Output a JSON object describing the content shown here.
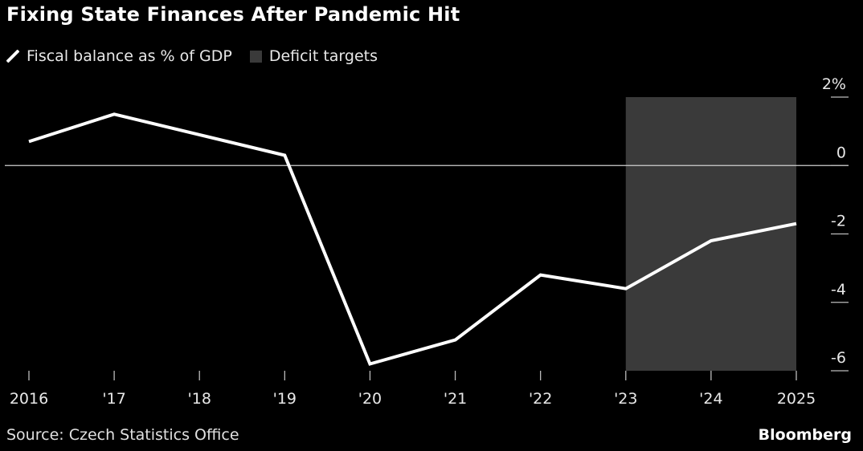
{
  "title": "Fixing State Finances After Pandemic Hit",
  "legend": {
    "line_label": "Fiscal balance as % of GDP",
    "box_label": "Deficit targets"
  },
  "source": "Source: Czech Statistics Office",
  "brand": "Bloomberg",
  "colors": {
    "background": "#000000",
    "line": "#ffffff",
    "target_band": "#3a3a3a",
    "zero_line": "#cfcfcf"
  },
  "chart_data": {
    "type": "line",
    "title": "Fixing State Finances After Pandemic Hit",
    "x": [
      2016,
      2017,
      2018,
      2019,
      2020,
      2021,
      2022,
      2023,
      2024,
      2025
    ],
    "x_tick_labels": [
      "2016",
      "'17",
      "'18",
      "'19",
      "'20",
      "'21",
      "'22",
      "'23",
      "'24",
      "2025"
    ],
    "series": [
      {
        "name": "Fiscal balance as % of GDP",
        "values": [
          0.7,
          1.5,
          null,
          0.3,
          -5.8,
          -5.1,
          -3.2,
          -3.6,
          -2.2,
          -1.7
        ]
      }
    ],
    "line_points": [
      {
        "x": 2016,
        "y": 0.7
      },
      {
        "x": 2017,
        "y": 1.5
      },
      {
        "x": 2019,
        "y": 0.3
      },
      {
        "x": 2020,
        "y": -5.8
      },
      {
        "x": 2021,
        "y": -5.1
      },
      {
        "x": 2022,
        "y": -3.2
      },
      {
        "x": 2023,
        "y": -3.6
      },
      {
        "x": 2024,
        "y": -2.2
      },
      {
        "x": 2025,
        "y": -1.7
      }
    ],
    "shaded_region": {
      "name": "Deficit targets",
      "x_start": 2023,
      "x_end": 2025
    },
    "y_ticks": [
      2,
      0,
      -2,
      -4,
      -6
    ],
    "y_tick_labels": [
      "2%",
      "0",
      "-2",
      "-4",
      "-6"
    ],
    "ylim": [
      -6,
      2
    ],
    "xlim": [
      2016,
      2025
    ],
    "y_axis_side": "right",
    "zero_line": true,
    "grid": false,
    "legend_position": "top-left"
  }
}
